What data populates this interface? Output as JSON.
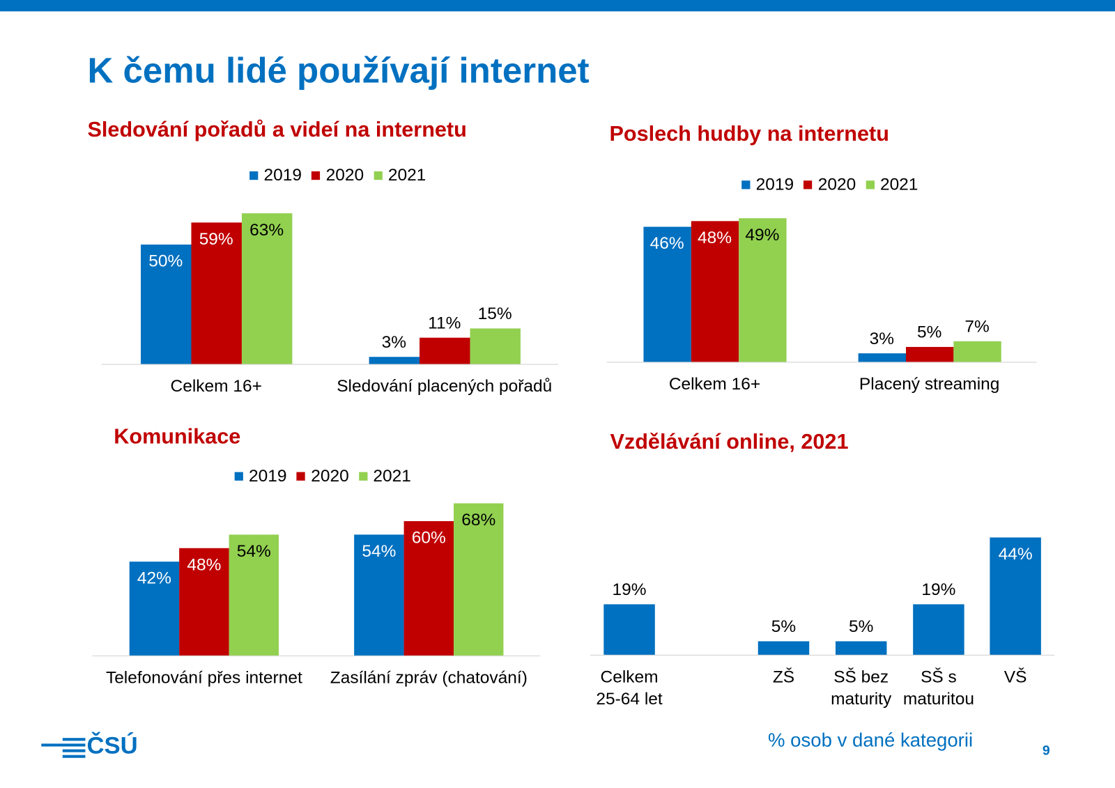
{
  "title": "K čemu lidé používají internet",
  "logo": "ČSÚ",
  "note": "% osob v dané kategorii",
  "page_number": "9",
  "chart_data": [
    {
      "type": "bar",
      "title": "Sledování pořadů a videí na internetu",
      "categories": [
        "Celkem 16+",
        "Sledování placených pořadů"
      ],
      "series": [
        {
          "name": "2019",
          "color": "#0070c0",
          "values": [
            50,
            3
          ],
          "value_labels": [
            "50%",
            "3%"
          ]
        },
        {
          "name": "2020",
          "color": "#c00000",
          "values": [
            59,
            11
          ],
          "value_labels": [
            "59%",
            "11%"
          ]
        },
        {
          "name": "2021",
          "color": "#92d050",
          "values": [
            63,
            15
          ],
          "value_labels": [
            "63%",
            "15%"
          ]
        }
      ]
    },
    {
      "type": "bar",
      "title": "Poslech hudby na internetu",
      "categories": [
        "Celkem 16+",
        "Placený streaming"
      ],
      "series": [
        {
          "name": "2019",
          "color": "#0070c0",
          "values": [
            46,
            3
          ],
          "value_labels": [
            "46%",
            "3%"
          ]
        },
        {
          "name": "2020",
          "color": "#c00000",
          "values": [
            48,
            5
          ],
          "value_labels": [
            "48%",
            "5%"
          ]
        },
        {
          "name": "2021",
          "color": "#92d050",
          "values": [
            49,
            7
          ],
          "value_labels": [
            "49%",
            "7%"
          ]
        }
      ]
    },
    {
      "type": "bar",
      "title": "Komunikace",
      "categories": [
        "Telefonování přes internet",
        "Zasílání zpráv (chatování)"
      ],
      "series": [
        {
          "name": "2019",
          "color": "#0070c0",
          "values": [
            42,
            54
          ],
          "value_labels": [
            "42%",
            "54%"
          ]
        },
        {
          "name": "2020",
          "color": "#c00000",
          "values": [
            48,
            60
          ],
          "value_labels": [
            "48%",
            "60%"
          ]
        },
        {
          "name": "2021",
          "color": "#92d050",
          "values": [
            54,
            68
          ],
          "value_labels": [
            "54%",
            "68%"
          ]
        }
      ]
    },
    {
      "type": "bar",
      "title": "Vzdělávání online, 2021",
      "categories": [
        "Celkem 25-64 let",
        null,
        "ZŠ",
        "SŠ bez maturity",
        "SŠ s maturitou",
        "VŠ"
      ],
      "series": [
        {
          "color": "#0070c0",
          "values": [
            19,
            null,
            5,
            5,
            19,
            44
          ],
          "value_labels": [
            "19%",
            null,
            "5%",
            "5%",
            "19%",
            "44%"
          ]
        }
      ]
    }
  ]
}
